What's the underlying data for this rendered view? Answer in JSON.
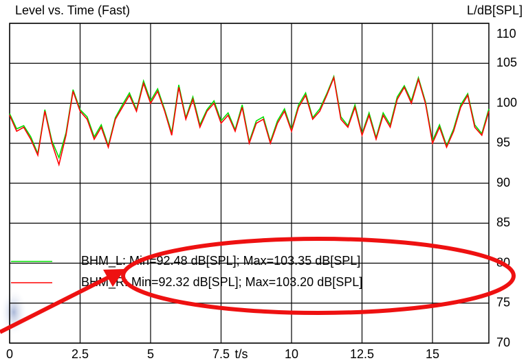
{
  "chart_data": {
    "type": "line",
    "title": "Level vs. Time (Fast)",
    "y_label": "L/dB[SPL]",
    "x_label": "t/s",
    "x": [
      0,
      0.25,
      0.5,
      0.75,
      1,
      1.25,
      1.5,
      1.75,
      2,
      2.25,
      2.5,
      2.75,
      3,
      3.25,
      3.5,
      3.75,
      4,
      4.25,
      4.5,
      4.75,
      5,
      5.25,
      5.5,
      5.75,
      6,
      6.25,
      6.5,
      6.75,
      7,
      7.25,
      7.5,
      7.75,
      8,
      8.25,
      8.5,
      8.75,
      9,
      9.25,
      9.5,
      9.75,
      10,
      10.25,
      10.5,
      10.75,
      11,
      11.25,
      11.5,
      11.75,
      12,
      12.25,
      12.5,
      12.75,
      13,
      13.25,
      13.5,
      13.75,
      14,
      14.25,
      14.5,
      14.75,
      15,
      15.25,
      15.5,
      15.75,
      16,
      16.25,
      16.5,
      16.75,
      17
    ],
    "series": [
      {
        "name": "BHM_L",
        "color": "#00dd00",
        "values": [
          98.7,
          96.8,
          97.2,
          95.8,
          93.7,
          99.2,
          95.3,
          93.2,
          96.3,
          101.7,
          99.2,
          98.3,
          95.8,
          97.3,
          94.7,
          98.2,
          99.8,
          101.3,
          99.2,
          102.8,
          100.3,
          101.8,
          99.2,
          96.3,
          102.3,
          98.2,
          100.8,
          97.3,
          99.2,
          100.3,
          97.8,
          98.8,
          96.7,
          99.8,
          95.2,
          97.8,
          98.3,
          95.2,
          97.8,
          99.3,
          96.7,
          99.8,
          101.3,
          98.2,
          99.3,
          101.2,
          103.35,
          98.3,
          97.2,
          99.8,
          96.2,
          98.8,
          95.7,
          98.8,
          97.3,
          100.8,
          102.2,
          100.3,
          103.2,
          100.2,
          95.3,
          97.3,
          94.7,
          96.8,
          99.8,
          101.2,
          97.3,
          96.2,
          99.3
        ]
      },
      {
        "name": "BHM_R",
        "color": "#ff0000",
        "values": [
          98.5,
          96.5,
          97,
          95.5,
          93.5,
          99,
          95,
          92.32,
          96,
          101.5,
          99,
          98,
          95.5,
          97,
          94.5,
          98,
          99.5,
          101,
          99,
          102.5,
          100,
          101.5,
          99,
          96,
          102,
          98,
          100.5,
          97,
          99,
          100,
          97.5,
          98.5,
          96.5,
          99.5,
          95,
          97.5,
          98,
          95,
          97.5,
          99,
          96.5,
          99.5,
          101,
          98,
          99,
          101,
          103.2,
          98,
          97,
          99.5,
          96,
          98.5,
          95.5,
          98.5,
          97,
          100.5,
          102,
          100,
          103,
          100,
          95,
          97,
          94.5,
          96.5,
          99.5,
          101,
          97,
          96,
          99
        ]
      }
    ],
    "annotations": [
      ": Min=92.48 dB[SPL]; Max=103.35 dB[SPL]",
      ": Min=92.32 dB[SPL]; Max=103.20 dB[SPL]"
    ],
    "xlim": [
      0,
      17
    ],
    "xticks": [
      0,
      2.5,
      5,
      7.5,
      10,
      12.5,
      15
    ],
    "ylim": [
      70,
      110
    ],
    "yticks": [
      70,
      75,
      80,
      85,
      90,
      95,
      100,
      105,
      110
    ],
    "grid": true
  }
}
